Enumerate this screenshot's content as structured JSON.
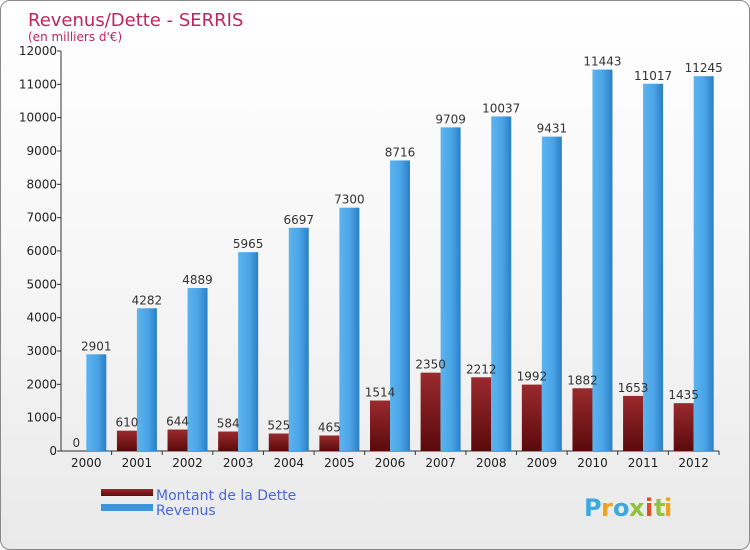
{
  "chart_data": {
    "type": "bar",
    "title": "Revenus/Dette - SERRIS",
    "subtitle": "(en milliers d'€)",
    "categories": [
      "2000",
      "2001",
      "2002",
      "2003",
      "2004",
      "2005",
      "2006",
      "2007",
      "2008",
      "2009",
      "2010",
      "2011",
      "2012"
    ],
    "series": [
      {
        "name": "Montant de la Dette",
        "color": "#7a1417",
        "values": [
          0,
          610,
          644,
          584,
          525,
          465,
          1514,
          2350,
          2212,
          1992,
          1882,
          1653,
          1435
        ]
      },
      {
        "name": "Revenus",
        "color": "#3d95dc",
        "values": [
          2901,
          4282,
          4889,
          5965,
          6697,
          7300,
          8716,
          9709,
          10037,
          9431,
          11443,
          11017,
          11245
        ]
      }
    ],
    "ylim": [
      0,
      12000
    ],
    "yticks": [
      0,
      1000,
      2000,
      3000,
      4000,
      5000,
      6000,
      7000,
      8000,
      9000,
      10000,
      11000,
      12000
    ],
    "grid": false,
    "legend_position": "bottom-left"
  },
  "logo": {
    "text": "Proxiti",
    "letters": [
      "P",
      "r",
      "o",
      "x",
      "i",
      "t",
      "i"
    ],
    "colors": [
      "#3da8e0",
      "#f0a21c",
      "#3da8e0",
      "#8fc23d",
      "#e64a1f",
      "#8fc23d",
      "#f0a21c"
    ]
  }
}
